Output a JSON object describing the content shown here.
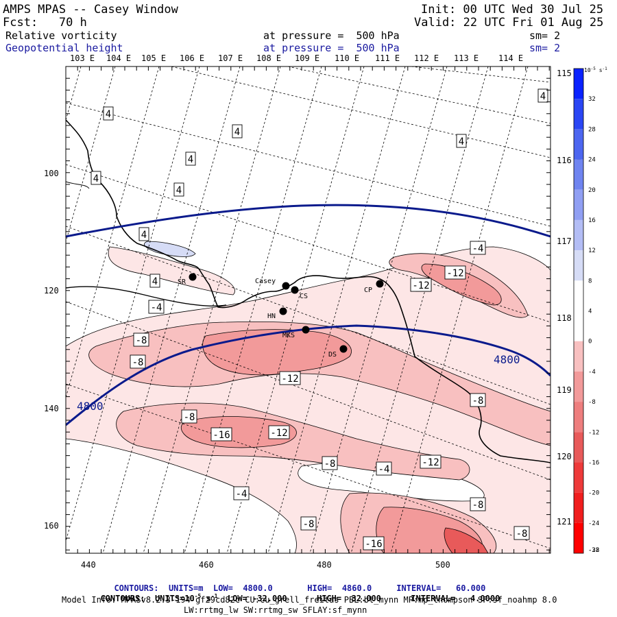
{
  "header": {
    "title": "AMPS MPAS -- Casey Window",
    "forecast": "Fcst:   70 h",
    "init": "Init: 00 UTC Wed 30 Jul 25",
    "valid": "Valid: 22 UTC Fri 01 Aug 25",
    "field1": {
      "name": "Relative vorticity",
      "level_label": "at pressure =  500 hPa",
      "smooth": "sm= 2"
    },
    "field2": {
      "name": "Geopotential height",
      "level_label": "at pressure =  500 hPa",
      "smooth": "sm= 2"
    }
  },
  "top_longitudes": [
    "103 E",
    "104 E",
    "105 E",
    "106 E",
    "107 E",
    "108 E",
    "109 E",
    "110 E",
    "111 E",
    "112 E",
    "113 E",
    "114 E"
  ],
  "right_longitudes": [
    "115 E",
    "116 E",
    "117 E",
    "118 E",
    "119 E",
    "120 E",
    "121 E"
  ],
  "x_ticks": [
    "440",
    "460",
    "480",
    "500"
  ],
  "y_ticks": [
    "100",
    "120",
    "140",
    "160"
  ],
  "colorbar": {
    "unit": "10^-5 s^-1",
    "labels": [
      "32",
      "28",
      "24",
      "20",
      "16",
      "12",
      "8",
      "4",
      "0",
      "-4",
      "-8",
      "-12",
      "-16",
      "-20",
      "-24",
      "-28",
      "-32"
    ]
  },
  "stations": [
    {
      "id": "SR",
      "label": "SR"
    },
    {
      "id": "Casey",
      "label": "Casey"
    },
    {
      "id": "CS",
      "label": "CS"
    },
    {
      "id": "CP",
      "label": "CP"
    },
    {
      "id": "HN",
      "label": "HN"
    },
    {
      "id": "MKS",
      "label": "MKS"
    },
    {
      "id": "DS",
      "label": "DS"
    }
  ],
  "height_contour_labels": [
    "4800",
    "4800"
  ],
  "vorticity_labels": [
    "4",
    "4",
    "4",
    "4",
    "4",
    "4",
    "4",
    "4",
    "4",
    "-4",
    "-4",
    "-4",
    "-4",
    "-8",
    "-8",
    "-8",
    "-8",
    "-8",
    "-8",
    "-8",
    "-8",
    "-8",
    "-12",
    "-12",
    "-12",
    "-12",
    "-12",
    "-16",
    "-16"
  ],
  "footer": {
    "line1": {
      "prefix": "CONTOURS:",
      "units": "UNITS=m",
      "low": "LOW=  4800.0",
      "high": "HIGH=  4860.0",
      "interval": "INTERVAL=   60.000"
    },
    "line2": {
      "prefix": "CONTOURS:",
      "units": "UNITS=10",
      "units_exp": "-5",
      "units_suffix": " s",
      "units_suffix_exp": "-1",
      "low": "LOW= -32.000",
      "high": "HIGH=  32.000",
      "interval": "INTERVAL=   4.0000"
    },
    "model_info": "Model Info: MPASv8.2.3-194-gf29cd82c CU:cu_grell_freitas PBL:bl_mynn MP:mp_thompson SF:sf_noahmp 8.0",
    "model_info2": "LW:rrtmg_lw SW:rrtmg_sw SFLAY:sf_mynn"
  },
  "colors": {
    "height_contour": "#0a1a8c",
    "text_blue": "#1a1aa0",
    "pink_light": "#fde6e6",
    "pink_mid": "#f8c0c0",
    "pink_dark": "#f29a9a",
    "red_strong": "#e85a5a",
    "blue_light": "#d6dcf6"
  }
}
